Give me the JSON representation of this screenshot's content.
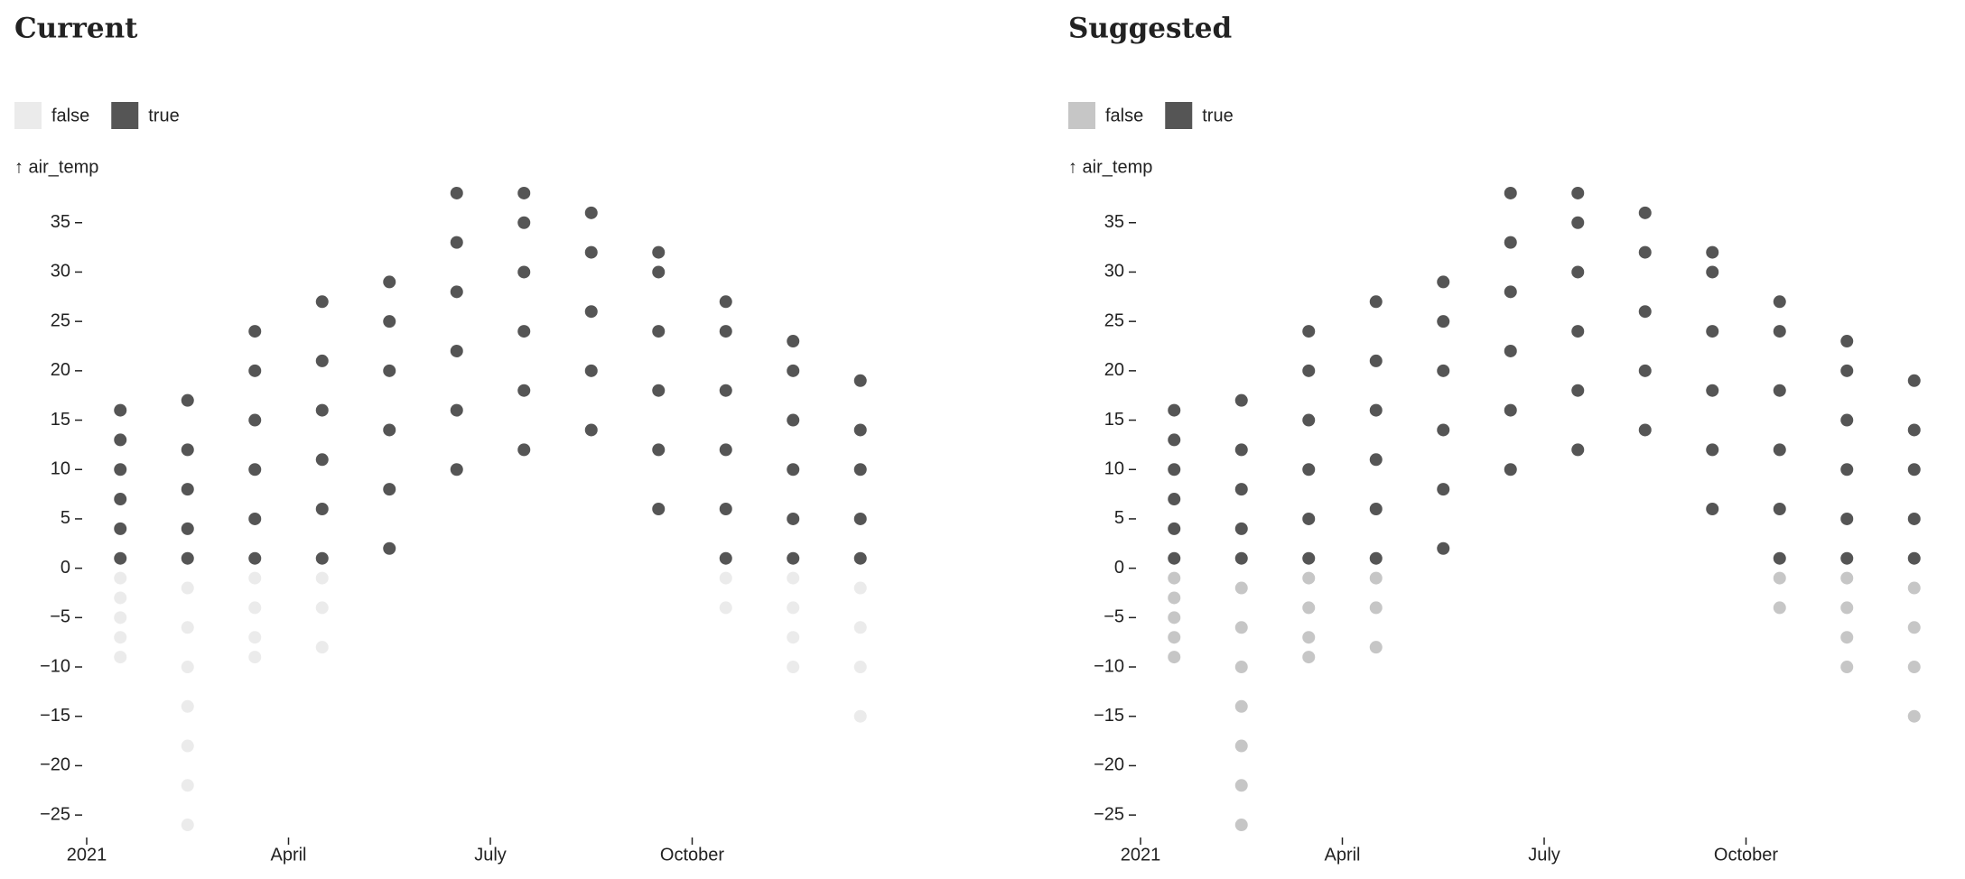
{
  "chart_data": [
    {
      "type": "scatter",
      "title": "Current",
      "y_label": "↑ air_temp",
      "xlim": [
        "2021-01",
        "2022-01"
      ],
      "xticks": [
        {
          "value": "2021-01",
          "label": "2021"
        },
        {
          "value": "2021-04",
          "label": "April"
        },
        {
          "value": "2021-07",
          "label": "July"
        },
        {
          "value": "2021-10",
          "label": "October"
        }
      ],
      "ylim": [
        -27,
        39
      ],
      "yticks": [
        {
          "value": -25,
          "label": "−25"
        },
        {
          "value": -20,
          "label": "−20"
        },
        {
          "value": -15,
          "label": "−15"
        },
        {
          "value": -10,
          "label": "−10"
        },
        {
          "value": -5,
          "label": "−5"
        },
        0,
        5,
        10,
        15,
        20,
        25,
        30,
        35
      ],
      "series": [
        {
          "name": "false",
          "color": "#ebebeb",
          "x": [
            "2021-01",
            "2021-01",
            "2021-01",
            "2021-01",
            "2021-01",
            "2021-02",
            "2021-02",
            "2021-02",
            "2021-02",
            "2021-02",
            "2021-02",
            "2021-02",
            "2021-03",
            "2021-03",
            "2021-03",
            "2021-03",
            "2021-04",
            "2021-04",
            "2021-04",
            "2021-10",
            "2021-10",
            "2021-11",
            "2021-11",
            "2021-11",
            "2021-11",
            "2021-12",
            "2021-12",
            "2021-12",
            "2021-12"
          ],
          "values": [
            -1,
            -3,
            -5,
            -7,
            -9,
            -2,
            -6,
            -10,
            -14,
            -18,
            -22,
            -26,
            -1,
            -4,
            -7,
            -9,
            -1,
            -4,
            -8,
            -1,
            -4,
            -1,
            -4,
            -7,
            -10,
            -2,
            -6,
            -10,
            -15
          ]
        },
        {
          "name": "true",
          "color": "#555555",
          "x": [
            "2021-01",
            "2021-01",
            "2021-01",
            "2021-01",
            "2021-01",
            "2021-01",
            "2021-02",
            "2021-02",
            "2021-02",
            "2021-02",
            "2021-02",
            "2021-03",
            "2021-03",
            "2021-03",
            "2021-03",
            "2021-03",
            "2021-03",
            "2021-04",
            "2021-04",
            "2021-04",
            "2021-04",
            "2021-04",
            "2021-04",
            "2021-05",
            "2021-05",
            "2021-05",
            "2021-05",
            "2021-05",
            "2021-05",
            "2021-06",
            "2021-06",
            "2021-06",
            "2021-06",
            "2021-06",
            "2021-06",
            "2021-07",
            "2021-07",
            "2021-07",
            "2021-07",
            "2021-07",
            "2021-07",
            "2021-08",
            "2021-08",
            "2021-08",
            "2021-08",
            "2021-08",
            "2021-09",
            "2021-09",
            "2021-09",
            "2021-09",
            "2021-09",
            "2021-09",
            "2021-10",
            "2021-10",
            "2021-10",
            "2021-10",
            "2021-10",
            "2021-10",
            "2021-11",
            "2021-11",
            "2021-11",
            "2021-11",
            "2021-11",
            "2021-11",
            "2021-12",
            "2021-12",
            "2021-12",
            "2021-12",
            "2021-12"
          ],
          "values": [
            1,
            4,
            7,
            10,
            13,
            16,
            1,
            4,
            8,
            12,
            17,
            1,
            5,
            10,
            15,
            20,
            24,
            1,
            6,
            11,
            16,
            21,
            27,
            2,
            8,
            14,
            20,
            25,
            29,
            10,
            16,
            22,
            28,
            33,
            38,
            12,
            18,
            24,
            30,
            35,
            38,
            14,
            20,
            26,
            32,
            36,
            6,
            12,
            18,
            24,
            30,
            32,
            1,
            6,
            12,
            18,
            24,
            27,
            1,
            5,
            10,
            15,
            20,
            23,
            1,
            5,
            10,
            14,
            19
          ]
        }
      ]
    },
    {
      "type": "scatter",
      "title": "Suggested",
      "y_label": "↑ air_temp",
      "xlim": [
        "2021-01",
        "2022-01"
      ],
      "xticks": [
        {
          "value": "2021-01",
          "label": "2021"
        },
        {
          "value": "2021-04",
          "label": "April"
        },
        {
          "value": "2021-07",
          "label": "July"
        },
        {
          "value": "2021-10",
          "label": "October"
        }
      ],
      "ylim": [
        -27,
        39
      ],
      "yticks": [
        {
          "value": -25,
          "label": "−25"
        },
        {
          "value": -20,
          "label": "−20"
        },
        {
          "value": -15,
          "label": "−15"
        },
        {
          "value": -10,
          "label": "−10"
        },
        {
          "value": -5,
          "label": "−5"
        },
        0,
        5,
        10,
        15,
        20,
        25,
        30,
        35
      ],
      "series": [
        {
          "name": "false",
          "color": "#c6c6c6",
          "x": [
            "2021-01",
            "2021-01",
            "2021-01",
            "2021-01",
            "2021-01",
            "2021-02",
            "2021-02",
            "2021-02",
            "2021-02",
            "2021-02",
            "2021-02",
            "2021-02",
            "2021-03",
            "2021-03",
            "2021-03",
            "2021-03",
            "2021-04",
            "2021-04",
            "2021-04",
            "2021-10",
            "2021-10",
            "2021-11",
            "2021-11",
            "2021-11",
            "2021-11",
            "2021-12",
            "2021-12",
            "2021-12",
            "2021-12"
          ],
          "values": [
            -1,
            -3,
            -5,
            -7,
            -9,
            -2,
            -6,
            -10,
            -14,
            -18,
            -22,
            -26,
            -1,
            -4,
            -7,
            -9,
            -1,
            -4,
            -8,
            -1,
            -4,
            -1,
            -4,
            -7,
            -10,
            -2,
            -6,
            -10,
            -15
          ]
        },
        {
          "name": "true",
          "color": "#555555",
          "x": [
            "2021-01",
            "2021-01",
            "2021-01",
            "2021-01",
            "2021-01",
            "2021-01",
            "2021-02",
            "2021-02",
            "2021-02",
            "2021-02",
            "2021-02",
            "2021-03",
            "2021-03",
            "2021-03",
            "2021-03",
            "2021-03",
            "2021-03",
            "2021-04",
            "2021-04",
            "2021-04",
            "2021-04",
            "2021-04",
            "2021-04",
            "2021-05",
            "2021-05",
            "2021-05",
            "2021-05",
            "2021-05",
            "2021-05",
            "2021-06",
            "2021-06",
            "2021-06",
            "2021-06",
            "2021-06",
            "2021-06",
            "2021-07",
            "2021-07",
            "2021-07",
            "2021-07",
            "2021-07",
            "2021-07",
            "2021-08",
            "2021-08",
            "2021-08",
            "2021-08",
            "2021-08",
            "2021-09",
            "2021-09",
            "2021-09",
            "2021-09",
            "2021-09",
            "2021-09",
            "2021-10",
            "2021-10",
            "2021-10",
            "2021-10",
            "2021-10",
            "2021-10",
            "2021-11",
            "2021-11",
            "2021-11",
            "2021-11",
            "2021-11",
            "2021-11",
            "2021-12",
            "2021-12",
            "2021-12",
            "2021-12",
            "2021-12"
          ],
          "values": [
            1,
            4,
            7,
            10,
            13,
            16,
            1,
            4,
            8,
            12,
            17,
            1,
            5,
            10,
            15,
            20,
            24,
            1,
            6,
            11,
            16,
            21,
            27,
            2,
            8,
            14,
            20,
            25,
            29,
            10,
            16,
            22,
            28,
            33,
            38,
            12,
            18,
            24,
            30,
            35,
            38,
            14,
            20,
            26,
            32,
            36,
            6,
            12,
            18,
            24,
            30,
            32,
            1,
            6,
            12,
            18,
            24,
            27,
            1,
            5,
            10,
            15,
            20,
            23,
            1,
            5,
            10,
            14,
            19
          ]
        }
      ]
    }
  ]
}
